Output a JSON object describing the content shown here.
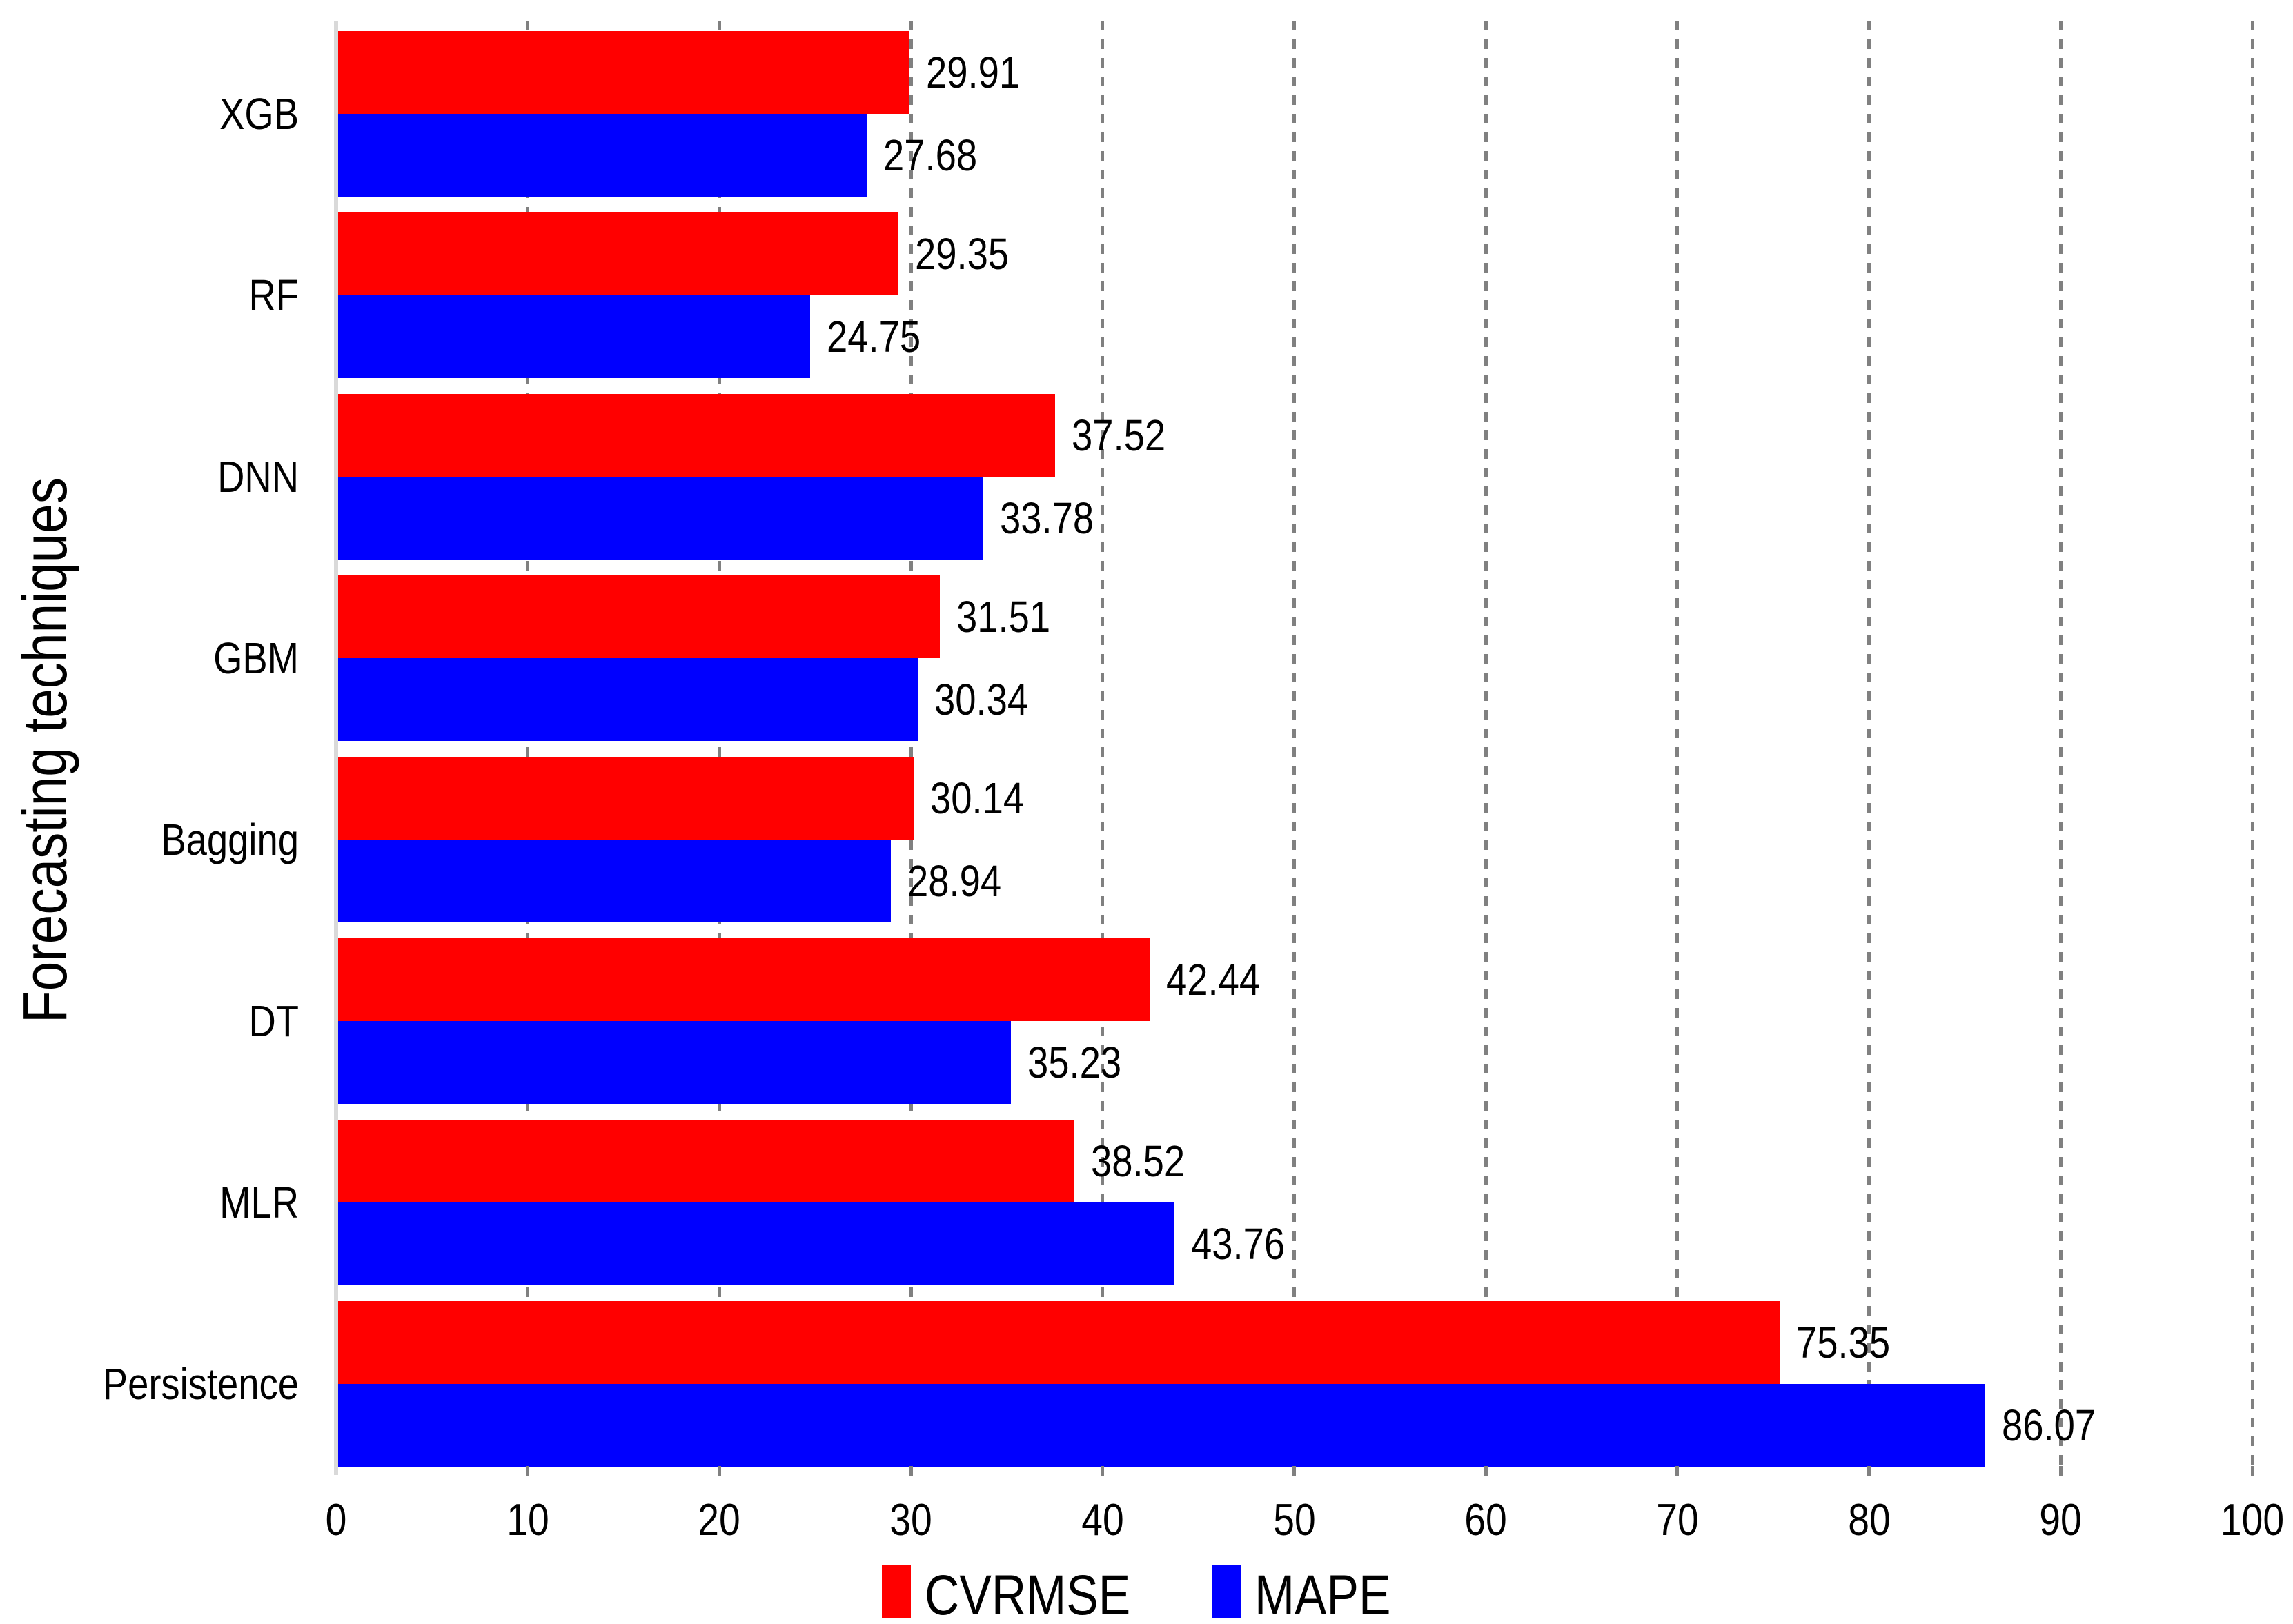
{
  "chart_data": {
    "type": "bar",
    "orientation": "horizontal",
    "title": "",
    "xlabel": "",
    "ylabel": "Forecasting techniques",
    "categories": [
      "XGB",
      "RF",
      "DNN",
      "GBM",
      "Bagging",
      "DT",
      "MLR",
      "Persistence"
    ],
    "series": [
      {
        "name": "CVRMSE",
        "color": "#ff0000",
        "values": [
          29.91,
          29.35,
          37.52,
          31.51,
          30.14,
          42.44,
          38.52,
          75.35
        ]
      },
      {
        "name": "MAPE",
        "color": "#0000ff",
        "values": [
          27.68,
          24.75,
          33.78,
          30.34,
          28.94,
          35.23,
          43.76,
          86.07
        ]
      }
    ],
    "value_labels_shown": true,
    "xlim": [
      0,
      100
    ],
    "xticks": [
      0,
      10,
      20,
      30,
      40,
      50,
      60,
      70,
      80,
      90,
      100
    ],
    "grid": "vertical-dashed",
    "legend_position": "bottom-center"
  },
  "styles": {
    "background": "#ffffff",
    "grid_color": "#808080",
    "tick_color": "#808080",
    "axis_line_color": "#d9d9d9",
    "text_color": "#000000",
    "bar_label_format": "2-decimals"
  }
}
